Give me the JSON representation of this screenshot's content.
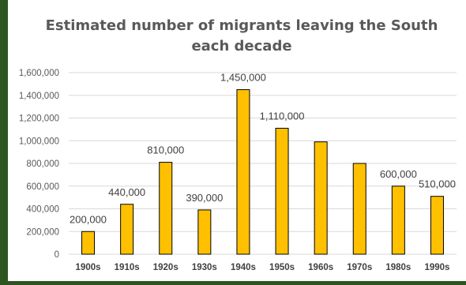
{
  "chart_data": {
    "type": "bar",
    "title_line1": "Estimated number of migrants leaving the South",
    "title_line2": "each decade",
    "xlabel": "",
    "ylabel": "",
    "categories": [
      "1900s",
      "1910s",
      "1920s",
      "1930s",
      "1940s",
      "1950s",
      "1960s",
      "1970s",
      "1980s",
      "1990s"
    ],
    "values": [
      200000,
      440000,
      810000,
      390000,
      1450000,
      1110000,
      990000,
      800000,
      600000,
      510000
    ],
    "data_labels": [
      "200,000",
      "440,000",
      "810,000",
      "390,000",
      "1,450,000",
      "1,110,000",
      "",
      "",
      "600,000",
      "510,000"
    ],
    "ylim": [
      0,
      1600000
    ],
    "yticks": [
      0,
      200000,
      400000,
      600000,
      800000,
      1000000,
      1200000,
      1400000,
      1600000
    ],
    "ytick_labels": [
      "0",
      "200,000",
      "400,000",
      "600,000",
      "800,000",
      "1,000,000",
      "1,200,000",
      "1,400,000",
      "1,600,000"
    ],
    "grid": true,
    "legend": "none",
    "bar_color": "#ffc000",
    "bar_outline": "#000000",
    "grid_color": "#d9d9d9"
  }
}
